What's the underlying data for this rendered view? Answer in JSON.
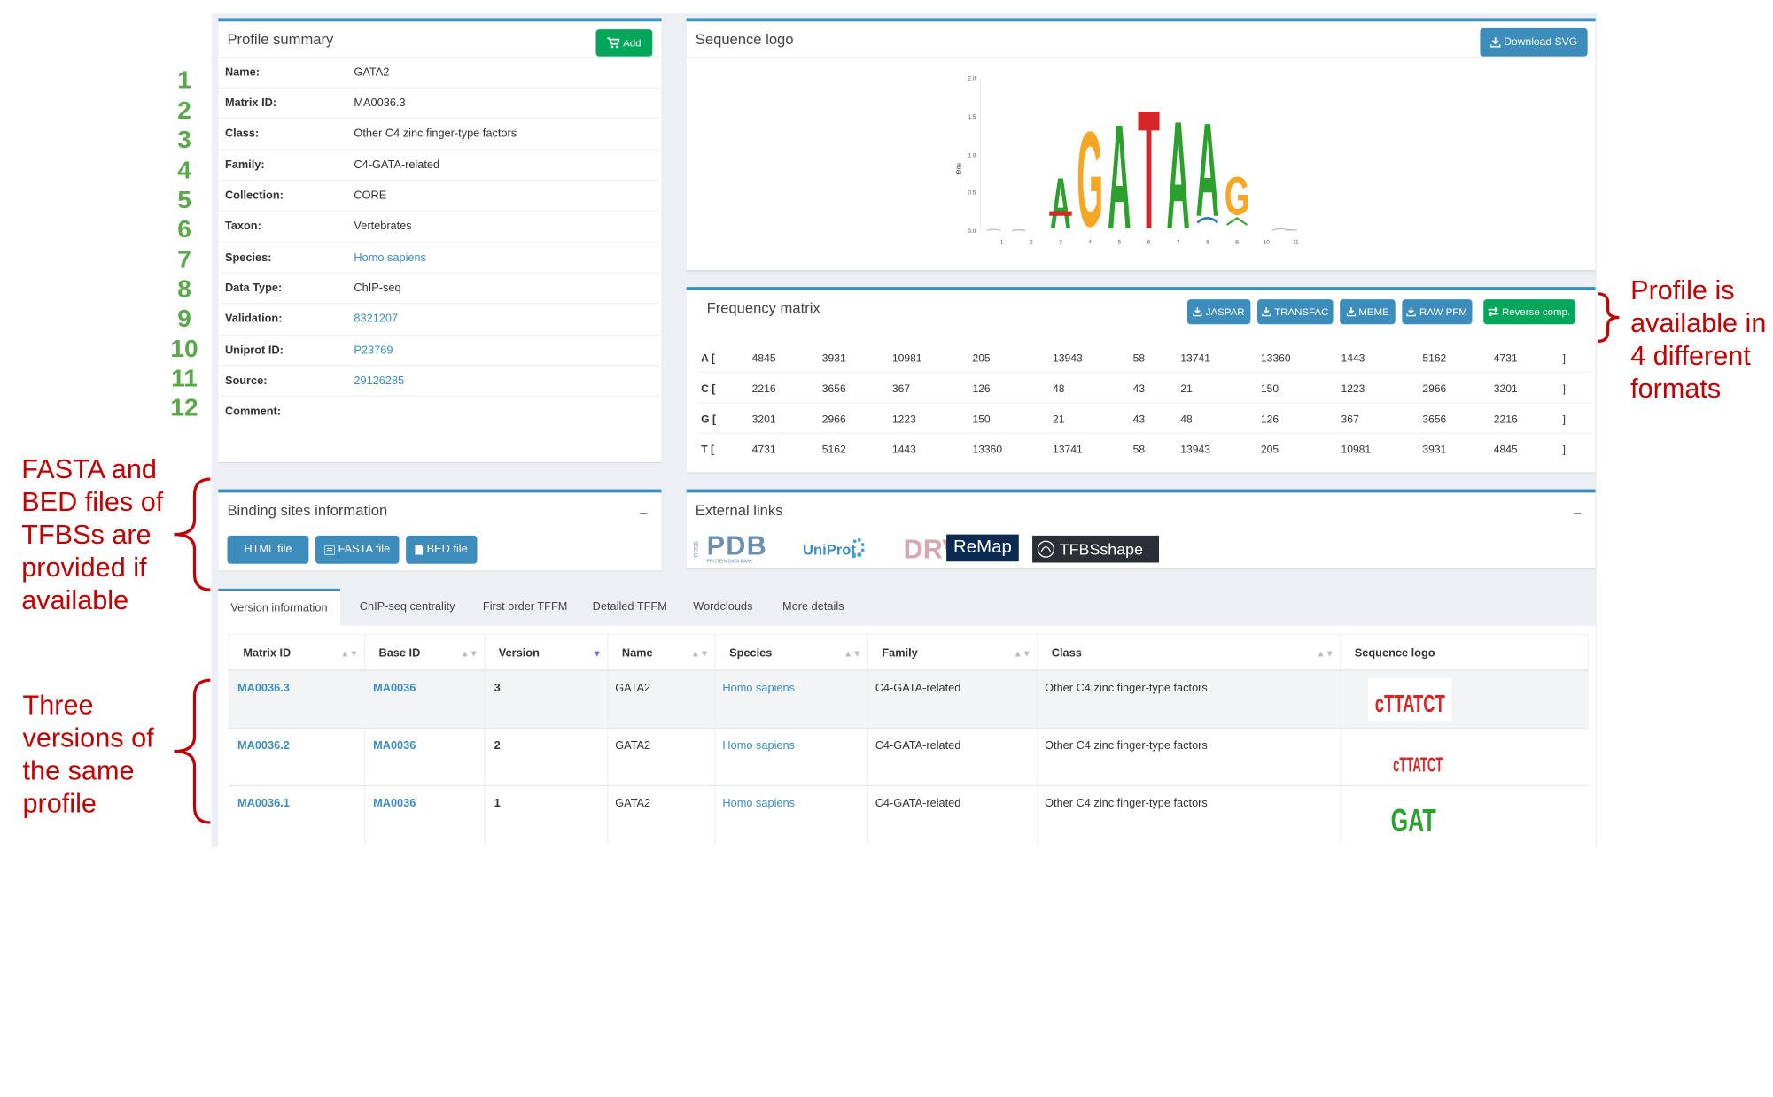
{
  "annotations": {
    "numbers": [
      "1",
      "2",
      "3",
      "4",
      "5",
      "6",
      "7",
      "8",
      "9",
      "10",
      "11",
      "12"
    ],
    "right_note": [
      "Profile is",
      "available in",
      "4 different",
      "formats"
    ],
    "fasta_note": [
      "FASTA and",
      "BED files of",
      "TFBSs are",
      "provided if",
      "available"
    ],
    "versions_note": [
      "Three",
      "versions of",
      "the same",
      "profile"
    ]
  },
  "profile": {
    "title": "Profile summary",
    "add_label": "Add",
    "rows": [
      {
        "key": "Name:",
        "value": "GATA2",
        "link": false
      },
      {
        "key": "Matrix ID:",
        "value": "MA0036.3",
        "link": false
      },
      {
        "key": "Class:",
        "value": "Other C4 zinc finger-type factors",
        "link": false
      },
      {
        "key": "Family:",
        "value": "C4-GATA-related",
        "link": false
      },
      {
        "key": "Collection:",
        "value": "CORE",
        "link": false
      },
      {
        "key": "Taxon:",
        "value": "Vertebrates",
        "link": false
      },
      {
        "key": "Species:",
        "value": "Homo sapiens",
        "link": true
      },
      {
        "key": "Data Type:",
        "value": "ChIP-seq",
        "link": false
      },
      {
        "key": "Validation:",
        "value": "8321207",
        "link": true
      },
      {
        "key": "Uniprot ID:",
        "value": "P23769",
        "link": true
      },
      {
        "key": "Source:",
        "value": "29126285",
        "link": true
      },
      {
        "key": "Comment:",
        "value": "",
        "link": false
      }
    ]
  },
  "logo": {
    "title": "Sequence logo",
    "download_label": "Download SVG",
    "ylabel": "Bits",
    "yticks": [
      "2.0",
      "1.5",
      "1.0",
      "0.5",
      "0.0"
    ],
    "xticks": [
      "1",
      "2",
      "3",
      "4",
      "5",
      "6",
      "7",
      "8",
      "9",
      "10",
      "11"
    ],
    "letters": [
      "A",
      "G",
      "A",
      "T",
      "A",
      "A",
      "G"
    ]
  },
  "matrix": {
    "title": "Frequency matrix",
    "buttons": [
      "JASPAR",
      "TRANSFAC",
      "MEME",
      "RAW PFM",
      "Reverse comp."
    ],
    "close": "]",
    "rows": [
      {
        "label": "A [",
        "values": [
          "4845",
          "3931",
          "10981",
          "205",
          "13943",
          "58",
          "13741",
          "13360",
          "1443",
          "5162",
          "4731"
        ]
      },
      {
        "label": "C [",
        "values": [
          "2216",
          "3656",
          "367",
          "126",
          "48",
          "43",
          "21",
          "150",
          "1223",
          "2966",
          "3201"
        ]
      },
      {
        "label": "G [",
        "values": [
          "3201",
          "2966",
          "1223",
          "150",
          "21",
          "43",
          "48",
          "126",
          "367",
          "3656",
          "2216"
        ]
      },
      {
        "label": "T [",
        "values": [
          "4731",
          "5162",
          "1443",
          "13360",
          "13741",
          "58",
          "13943",
          "205",
          "10981",
          "3931",
          "4845"
        ]
      }
    ]
  },
  "binding": {
    "title": "Binding sites information",
    "collapse": "−",
    "buttons": [
      "HTML file",
      "FASTA file",
      "BED file"
    ]
  },
  "external": {
    "title": "External links",
    "collapse": "−",
    "logos": {
      "pdb_small": "RCSB",
      "pdb": "PDB",
      "pdb_sub": "PROTEIN DATA BANK",
      "uniprot": "UniProt",
      "drv": "DRV",
      "remap": "ReMap",
      "tfbsshape": "TFBSshape"
    }
  },
  "tabs": [
    "Version information",
    "ChIP-seq centrality",
    "First order TFFM",
    "Detailed TFFM",
    "Wordclouds",
    "More details"
  ],
  "versions": {
    "headers": [
      "Matrix ID",
      "Base ID",
      "Version",
      "Name",
      "Species",
      "Family",
      "Class",
      "Sequence logo"
    ],
    "rows": [
      {
        "matrix_id": "MA0036.3",
        "base_id": "MA0036",
        "version": "3",
        "name": "GATA2",
        "species": "Homo sapiens",
        "family": "C4-GATA-related",
        "class": "Other C4 zinc finger-type factors",
        "logo": "cTTATCT"
      },
      {
        "matrix_id": "MA0036.2",
        "base_id": "MA0036",
        "version": "2",
        "name": "GATA2",
        "species": "Homo sapiens",
        "family": "C4-GATA-related",
        "class": "Other C4 zinc finger-type factors",
        "logo": "cTTATCT"
      },
      {
        "matrix_id": "MA0036.1",
        "base_id": "MA0036",
        "version": "1",
        "name": "GATA2",
        "species": "Homo sapiens",
        "family": "C4-GATA-related",
        "class": "Other C4 zinc finger-type factors",
        "logo": "GAT"
      }
    ]
  },
  "colors": {
    "A": "#2ca02c",
    "C": "#1f77b4",
    "G": "#f5a623",
    "T": "#d62728",
    "accent": "#3c8dbc",
    "success": "#00a65a",
    "annotation": "#c00000",
    "numbers": "#5ba84a"
  }
}
